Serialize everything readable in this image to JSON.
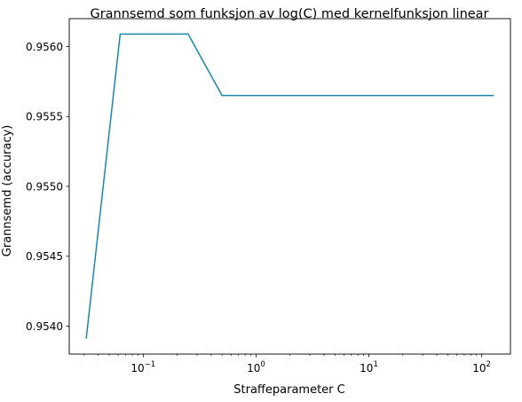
{
  "chart_data": {
    "type": "line",
    "title": "Grannsemd som funksjon av log(C) med kernelfunksjon linear",
    "xlabel": "Straffeparameter C",
    "ylabel": "Grannsemd (accuracy)",
    "x_scale": "log",
    "xlim": [
      0.0221,
      179.8
    ],
    "ylim": [
      0.9538,
      0.9562
    ],
    "x_ticks": [
      {
        "value": 0.1,
        "base": "10",
        "exp": "−1"
      },
      {
        "value": 1,
        "base": "10",
        "exp": "0"
      },
      {
        "value": 10,
        "base": "10",
        "exp": "1"
      },
      {
        "value": 100,
        "base": "10",
        "exp": "2"
      }
    ],
    "y_ticks": [
      {
        "value": 0.954,
        "label": "0.9540"
      },
      {
        "value": 0.9545,
        "label": "0.9545"
      },
      {
        "value": 0.955,
        "label": "0.9550"
      },
      {
        "value": 0.9555,
        "label": "0.9555"
      },
      {
        "value": 0.956,
        "label": "0.9560"
      }
    ],
    "grid": false,
    "series": [
      {
        "color": "#1a86ad",
        "x": [
          0.03125,
          0.0625,
          0.125,
          0.25,
          0.5,
          1,
          2,
          4,
          8,
          16,
          32,
          64,
          128
        ],
        "y": [
          0.95391,
          0.95609,
          0.95609,
          0.95609,
          0.95565,
          0.95565,
          0.95565,
          0.95565,
          0.95565,
          0.95565,
          0.95565,
          0.95565,
          0.95565
        ]
      }
    ]
  }
}
